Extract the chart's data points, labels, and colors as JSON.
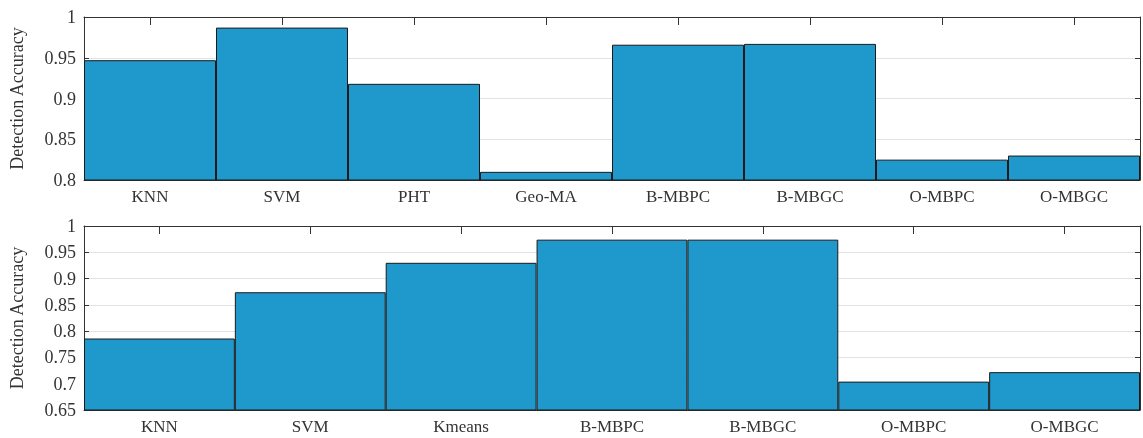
{
  "chart_data": [
    {
      "type": "bar",
      "ylabel": "Detection Accuracy",
      "categories": [
        "KNN",
        "SVM",
        "PHT",
        "Geo-MA",
        "B-MBPC",
        "B-MBGC",
        "O-MBPC",
        "O-MBGC"
      ],
      "values": [
        0.947,
        0.987,
        0.918,
        0.81,
        0.966,
        0.967,
        0.825,
        0.83
      ],
      "color": "#1f98cc",
      "ylim": [
        0.8,
        1
      ],
      "yticks": [
        0.8,
        0.85,
        0.9,
        0.95,
        1
      ],
      "grid": "y"
    },
    {
      "type": "bar",
      "ylabel": "Detection Accuracy",
      "categories": [
        "KNN",
        "SVM",
        "Kmeans",
        "B-MBPC",
        "B-MBGC",
        "O-MBPC",
        "O-MBGC"
      ],
      "values": [
        0.786,
        0.874,
        0.93,
        0.974,
        0.974,
        0.704,
        0.722
      ],
      "color": "#1f98cc",
      "ylim": [
        0.65,
        1
      ],
      "yticks": [
        0.65,
        0.7,
        0.75,
        0.8,
        0.85,
        0.9,
        0.95,
        1
      ],
      "grid": "y"
    }
  ]
}
